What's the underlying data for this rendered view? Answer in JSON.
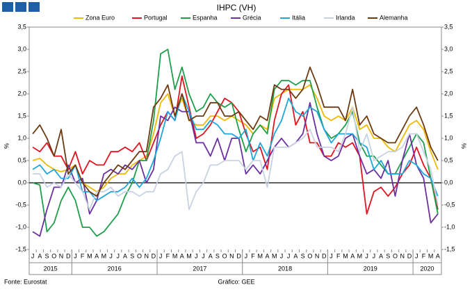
{
  "chart_data": {
    "type": "line",
    "title": "IHPC (VH)",
    "y_label": "%",
    "y2_label": "%",
    "source": "Fonte: Eurostat",
    "credit": "Gráfico: GEE",
    "categories": [
      "J",
      "A",
      "S",
      "O",
      "N",
      "D",
      "J",
      "F",
      "M",
      "A",
      "M",
      "J",
      "J",
      "A",
      "S",
      "O",
      "N",
      "D",
      "J",
      "F",
      "M",
      "A",
      "M",
      "J",
      "J",
      "A",
      "S",
      "O",
      "N",
      "D",
      "J",
      "F",
      "M",
      "A",
      "M",
      "J",
      "J",
      "A",
      "S",
      "O",
      "N",
      "D",
      "J",
      "F",
      "M",
      "A",
      "M",
      "J",
      "J",
      "A",
      "S",
      "O",
      "N",
      "D",
      "J",
      "F",
      "M",
      "A"
    ],
    "year_groups": [
      {
        "label": "2015",
        "months": 6
      },
      {
        "label": "2016",
        "months": 12
      },
      {
        "label": "2017",
        "months": 12
      },
      {
        "label": "2018",
        "months": 12
      },
      {
        "label": "2019",
        "months": 12
      },
      {
        "label": "2020",
        "months": 4
      }
    ],
    "ylim": [
      -1.5,
      3.5
    ],
    "yticks": [
      {
        "value": -1.5,
        "label": "-1,5"
      },
      {
        "value": -1,
        "label": "-1,0"
      },
      {
        "value": -0.5,
        "label": "-0,5"
      },
      {
        "value": 0,
        "label": "0,0"
      },
      {
        "value": 0.5,
        "label": "0,5"
      },
      {
        "value": 1,
        "label": "1,0"
      },
      {
        "value": 1.5,
        "label": "1,5"
      },
      {
        "value": 2,
        "label": "2,0"
      },
      {
        "value": 2.5,
        "label": "2,5"
      },
      {
        "value": 3,
        "label": "3,0"
      },
      {
        "value": 3.5,
        "label": "3,5"
      }
    ],
    "series": [
      {
        "name": "Zona Euro",
        "color": "#f0b800",
        "values": [
          0.5,
          0.55,
          0.4,
          0.3,
          0.25,
          0.3,
          0.4,
          0.0,
          -0.1,
          -0.2,
          -0.1,
          0.1,
          0.2,
          0.2,
          0.4,
          0.5,
          0.6,
          1.1,
          1.8,
          2.0,
          1.5,
          1.9,
          1.4,
          1.3,
          1.3,
          1.5,
          1.5,
          1.4,
          1.5,
          1.4,
          1.3,
          1.1,
          1.3,
          1.2,
          1.9,
          2.0,
          2.1,
          2.1,
          2.1,
          2.2,
          1.9,
          1.5,
          1.4,
          1.5,
          1.4,
          1.7,
          1.2,
          1.3,
          1.0,
          1.0,
          0.8,
          0.7,
          1.0,
          1.3,
          1.4,
          1.2,
          0.7,
          0.3
        ]
      },
      {
        "name": "Portugal",
        "color": "#e0141e",
        "values": [
          0.8,
          0.7,
          0.9,
          0.6,
          0.6,
          0.3,
          0.7,
          0.2,
          0.5,
          0.4,
          0.4,
          0.7,
          0.7,
          0.8,
          0.7,
          0.9,
          0.5,
          0.9,
          1.3,
          1.6,
          1.4,
          2.4,
          1.7,
          1.0,
          1.1,
          1.3,
          1.6,
          1.9,
          1.8,
          1.6,
          1.1,
          0.7,
          0.8,
          0.3,
          1.4,
          2.0,
          2.2,
          1.3,
          1.6,
          0.9,
          0.9,
          0.6,
          0.6,
          0.9,
          0.8,
          0.9,
          0.6,
          -0.7,
          -0.2,
          -0.1,
          -0.3,
          -0.1,
          0.2,
          0.4,
          0.8,
          0.4,
          0.1,
          -0.6
        ]
      },
      {
        "name": "Espanha",
        "color": "#1e9e4a",
        "values": [
          0.0,
          -0.05,
          -1.1,
          -0.9,
          -0.4,
          -0.1,
          -0.4,
          -1.0,
          -1.0,
          -1.2,
          -1.1,
          -0.9,
          -0.7,
          -0.3,
          0.0,
          0.5,
          0.5,
          1.4,
          2.9,
          3.0,
          2.1,
          2.6,
          2.0,
          1.6,
          1.7,
          2.0,
          1.8,
          1.7,
          1.8,
          1.2,
          0.7,
          1.1,
          1.3,
          1.1,
          2.1,
          2.3,
          2.3,
          2.2,
          2.3,
          2.3,
          1.7,
          1.2,
          1.0,
          1.1,
          1.3,
          1.6,
          0.9,
          0.6,
          0.6,
          0.4,
          0.2,
          0.2,
          0.5,
          0.8,
          1.1,
          0.9,
          0.1,
          -0.7
        ]
      },
      {
        "name": "Grécia",
        "color": "#6a2fa0",
        "values": [
          -1.1,
          -1.2,
          -0.6,
          -0.1,
          -0.1,
          0.4,
          0.0,
          0.1,
          -0.7,
          -0.4,
          0.2,
          0.3,
          0.2,
          0.4,
          0.3,
          0.5,
          0.0,
          0.3,
          1.5,
          1.4,
          1.7,
          1.6,
          1.6,
          0.9,
          0.9,
          0.6,
          1.0,
          0.5,
          1.0,
          1.0,
          0.2,
          0.4,
          0.2,
          0.5,
          0.8,
          1.0,
          0.8,
          0.9,
          1.1,
          1.8,
          1.1,
          0.6,
          0.5,
          0.6,
          1.0,
          1.1,
          0.6,
          0.2,
          0.3,
          0.1,
          0.5,
          -0.3,
          0.5,
          1.1,
          0.4,
          0.1,
          -0.9,
          -0.7
        ]
      },
      {
        "name": "Itália",
        "color": "#1ea6dc",
        "values": [
          0.3,
          0.4,
          0.2,
          0.3,
          0.1,
          0.1,
          0.4,
          -0.2,
          -0.2,
          -0.4,
          -0.3,
          -0.2,
          -0.2,
          -0.1,
          0.1,
          -0.1,
          0.1,
          0.5,
          1.0,
          1.6,
          1.4,
          2.0,
          1.6,
          1.2,
          1.2,
          1.4,
          1.3,
          1.1,
          1.1,
          1.0,
          1.2,
          0.5,
          0.9,
          0.6,
          1.1,
          1.4,
          1.9,
          1.6,
          1.5,
          1.7,
          1.6,
          1.2,
          0.9,
          1.1,
          1.1,
          1.1,
          0.9,
          0.8,
          0.3,
          0.5,
          0.2,
          0.2,
          0.2,
          0.5,
          0.4,
          0.2,
          0.1,
          -0.3
        ]
      },
      {
        "name": "Irlanda",
        "color": "#c8d2e2",
        "values": [
          0.2,
          0.2,
          -0.1,
          0.0,
          -0.1,
          0.2,
          0.0,
          -0.2,
          -0.6,
          -0.2,
          -0.2,
          -0.1,
          -0.3,
          -0.2,
          -0.2,
          -0.3,
          -0.2,
          -0.2,
          0.2,
          0.3,
          0.6,
          0.7,
          -0.6,
          -0.2,
          0.0,
          0.4,
          0.4,
          0.5,
          0.5,
          0.5,
          0.3,
          0.5,
          0.5,
          -0.1,
          0.8,
          0.8,
          0.8,
          0.9,
          1.0,
          1.2,
          0.8,
          0.8,
          0.8,
          0.7,
          1.1,
          1.7,
          0.7,
          1.1,
          0.5,
          0.6,
          0.7,
          0.7,
          0.8,
          1.1,
          1.1,
          0.7,
          0.3,
          -0.5
        ]
      },
      {
        "name": "Alemanha",
        "color": "#6b3a10",
        "values": [
          1.1,
          1.3,
          1.0,
          0.6,
          1.2,
          0.2,
          0.4,
          0.0,
          -0.2,
          -0.3,
          0.0,
          0.2,
          0.4,
          0.3,
          0.5,
          0.7,
          0.7,
          1.7,
          1.9,
          2.2,
          1.5,
          2.0,
          1.4,
          1.5,
          1.5,
          1.8,
          1.8,
          1.5,
          1.5,
          1.6,
          1.4,
          1.2,
          1.5,
          1.4,
          2.2,
          2.1,
          2.1,
          1.9,
          2.1,
          2.6,
          2.2,
          1.7,
          1.7,
          1.7,
          1.4,
          2.1,
          1.3,
          1.5,
          1.1,
          1.0,
          0.9,
          0.9,
          1.2,
          1.5,
          1.7,
          1.3,
          0.8,
          0.5
        ]
      }
    ]
  }
}
